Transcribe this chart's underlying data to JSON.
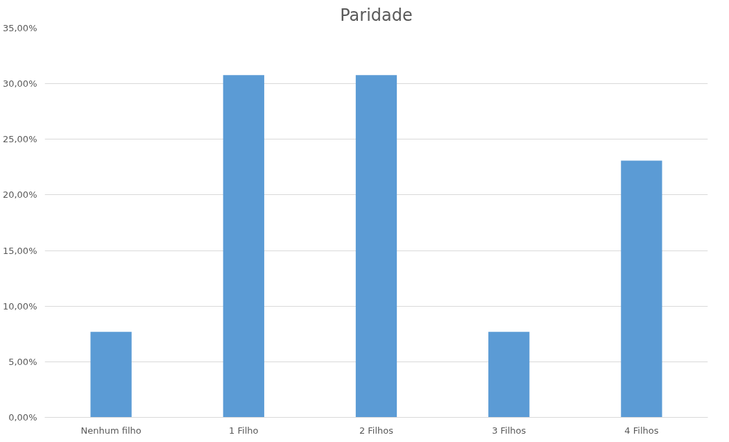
{
  "chart_data": {
    "type": "bar",
    "title": "Paridade",
    "categories": [
      "Nenhum filho",
      "1 Filho",
      "2 Filhos",
      "3 Filhos",
      "4 Filhos"
    ],
    "values": [
      7.69,
      30.77,
      30.77,
      7.69,
      23.08
    ],
    "color": "#5b9bd5",
    "ylim": [
      0,
      35
    ],
    "yticks": [
      {
        "value": 0,
        "label": "0,00%"
      },
      {
        "value": 5,
        "label": "5,00%"
      },
      {
        "value": 10,
        "label": "10,00%"
      },
      {
        "value": 15,
        "label": "15,00%"
      },
      {
        "value": 20,
        "label": "20,00%"
      },
      {
        "value": 25,
        "label": "25,00%"
      },
      {
        "value": 30,
        "label": "30,00%"
      },
      {
        "value": 35,
        "label": "35,00%"
      }
    ],
    "grid": "y"
  }
}
